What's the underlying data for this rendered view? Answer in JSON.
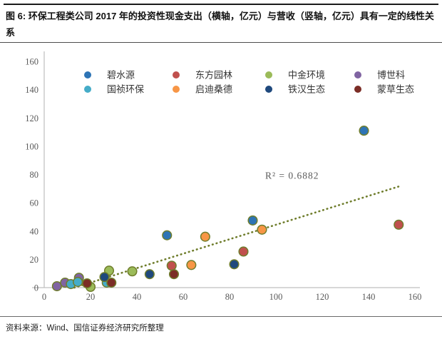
{
  "figure": {
    "title": "图 6: 环保工程类公司 2017 年的投资性现金支出（横轴，亿元）与营收（竖轴，亿元）具有一定的线性关系",
    "source": "资料来源：Wind、国信证券经济研究所整理"
  },
  "chart_data": {
    "type": "scatter",
    "title": "环保工程类公司2017年的投资性现金支出（横轴，亿元）与营收（竖轴，亿元）具有一定的线性关系",
    "xlabel": "投资性现金支出（横轴，亿元）",
    "ylabel": "营收（竖轴，亿元）",
    "xlim": [
      0,
      160
    ],
    "ylim": [
      0,
      160
    ],
    "xticks": [
      0,
      20,
      40,
      60,
      80,
      100,
      120,
      140,
      160
    ],
    "yticks": [
      0,
      20,
      40,
      60,
      80,
      100,
      120,
      140,
      160
    ],
    "grid": false,
    "legend_position": "top-center-two-rows",
    "axis_color": "#bfbfbf",
    "tick_color": "#595959",
    "marker_border_color": "#6f7d2c",
    "series": [
      {
        "name": "碧水源",
        "color": "#2E74B5",
        "points": [
          [
            53,
            37
          ],
          [
            90,
            47.5
          ],
          [
            138,
            111
          ]
        ]
      },
      {
        "name": "东方园林",
        "color": "#C0504D",
        "points": [
          [
            55,
            15.5
          ],
          [
            86,
            25.5
          ],
          [
            153,
            44.5
          ]
        ]
      },
      {
        "name": "中金环境",
        "color": "#9BBB59",
        "points": [
          [
            20,
            0.5
          ],
          [
            28,
            12
          ],
          [
            38,
            11.5
          ]
        ]
      },
      {
        "name": "博世科",
        "color": "#8064A2",
        "points": [
          [
            5.5,
            1
          ],
          [
            9,
            3.5
          ],
          [
            15,
            7
          ]
        ]
      },
      {
        "name": "国祯环保",
        "color": "#45ACC8",
        "points": [
          [
            11.5,
            2.5
          ],
          [
            14.5,
            4
          ],
          [
            27,
            3.5
          ]
        ]
      },
      {
        "name": "启迪桑德",
        "color": "#F79646",
        "points": [
          [
            63.5,
            16
          ],
          [
            69.5,
            36
          ],
          [
            94,
            41
          ]
        ]
      },
      {
        "name": "铁汉生态",
        "color": "#1F497D",
        "points": [
          [
            26,
            7.5
          ],
          [
            45.5,
            9.5
          ],
          [
            82,
            16.5
          ]
        ]
      },
      {
        "name": "蒙草生态",
        "color": "#7B2D26",
        "points": [
          [
            18.5,
            3
          ],
          [
            29,
            3.5
          ],
          [
            56,
            9.5
          ]
        ]
      }
    ],
    "trendline": {
      "style": "dotted",
      "color": "#6f7d2c",
      "x1": 13,
      "y1": 0,
      "x2": 153,
      "y2": 71.5,
      "label": "R² = 0.6882",
      "label_x": 107,
      "label_y": 77
    }
  }
}
